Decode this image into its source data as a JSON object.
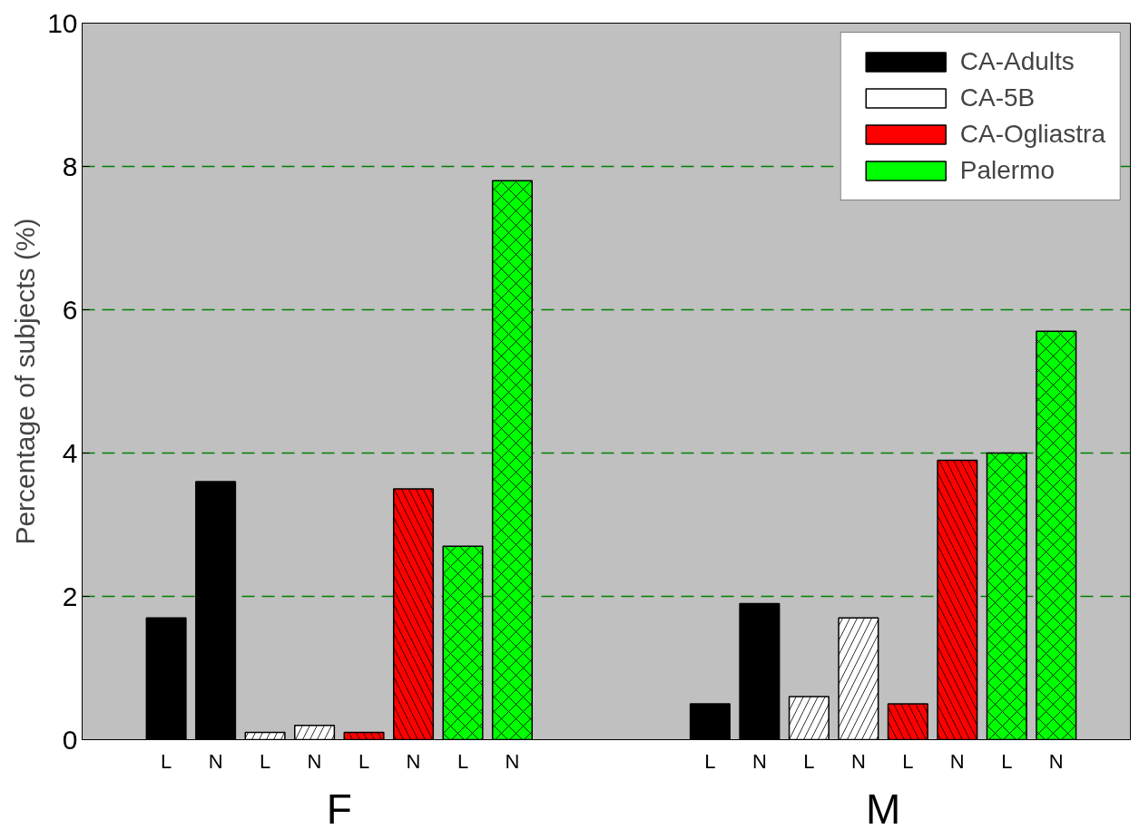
{
  "chart_data": {
    "type": "bar",
    "ylabel": "Percentage of subjects (%)",
    "categories": [
      "L",
      "N",
      "L",
      "N",
      "L",
      "N",
      "L",
      "N",
      null,
      null,
      null,
      "L",
      "N",
      "L",
      "N",
      "L",
      "N",
      "L",
      "N"
    ],
    "series": [
      {
        "name": "CA-Adults",
        "color": "#000000",
        "values": [
          1.7,
          3.6,
          null,
          null,
          null,
          null,
          null,
          null,
          null,
          null,
          null,
          0.5,
          1.9,
          null,
          null,
          null,
          null,
          null,
          null
        ]
      },
      {
        "name": "CA-5B",
        "color": "#ffffff",
        "values": [
          null,
          null,
          0.1,
          0.2,
          null,
          null,
          null,
          null,
          null,
          null,
          null,
          null,
          null,
          0.6,
          1.7,
          null,
          null,
          null,
          null
        ]
      },
      {
        "name": "CA-Ogliastra",
        "color": "#ff0000",
        "values": [
          null,
          null,
          null,
          null,
          0.1,
          3.5,
          null,
          null,
          null,
          null,
          null,
          null,
          null,
          null,
          null,
          0.5,
          3.9,
          null,
          null
        ]
      },
      {
        "name": "Palermo",
        "color": "#00ff00",
        "values": [
          null,
          null,
          null,
          null,
          null,
          null,
          2.7,
          7.8,
          null,
          null,
          null,
          null,
          null,
          null,
          null,
          null,
          null,
          4.0,
          5.7
        ]
      }
    ],
    "annotations": [
      "F",
      "M"
    ],
    "ylim": [
      0,
      10
    ],
    "yticks": [
      0,
      2,
      4,
      6,
      8,
      10
    ],
    "grid": "y",
    "legend": "top right"
  }
}
